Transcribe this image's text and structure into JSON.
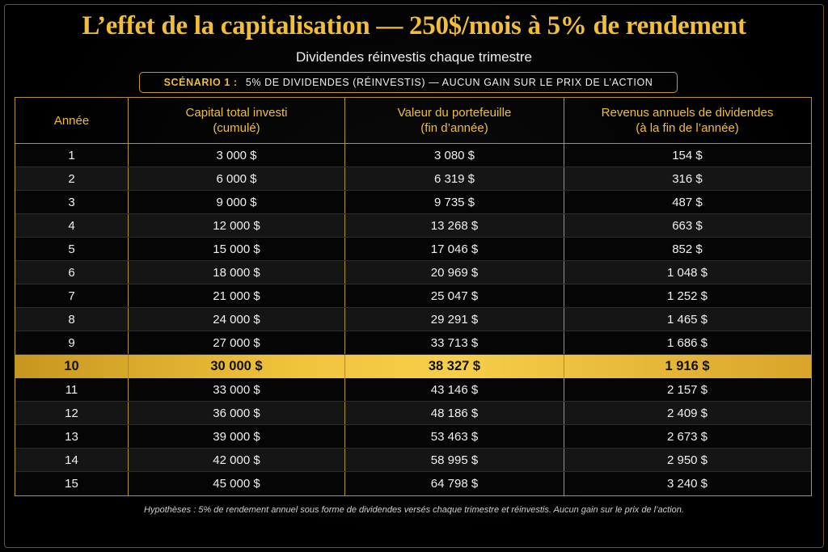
{
  "header": {
    "title": "L’effet de la capitalisation — 250$/mois à 5% de rendement",
    "subtitle": "Dividendes réinvestis chaque trimestre"
  },
  "scenario": {
    "label": "SCÉNARIO 1 :",
    "text": "5% DE DIVIDENDES (RÉINVESTIS) — AUCUN GAIN SUR LE PRIX DE L’ACTION"
  },
  "table": {
    "columns": [
      {
        "line1": "Année",
        "line2": ""
      },
      {
        "line1": "Capital total investi",
        "line2": "(cumulé)"
      },
      {
        "line1": "Valeur du portefeuille",
        "line2": "(fin d’année)"
      },
      {
        "line1": "Revenus annuels de dividendes",
        "line2": "(à la fin de l’année)"
      }
    ],
    "rows": [
      [
        "1",
        "3 000 $",
        "3 080 $",
        "154 $"
      ],
      [
        "2",
        "6 000 $",
        "6 319 $",
        "316 $"
      ],
      [
        "3",
        "9 000 $",
        "9 735 $",
        "487 $"
      ],
      [
        "4",
        "12 000 $",
        "13 268 $",
        "663 $"
      ],
      [
        "5",
        "15 000 $",
        "17 046 $",
        "852 $"
      ],
      [
        "6",
        "18 000 $",
        "20 969 $",
        "1 048 $"
      ],
      [
        "7",
        "21 000 $",
        "25 047 $",
        "1 252 $"
      ],
      [
        "8",
        "24 000 $",
        "29 291 $",
        "1 465 $"
      ],
      [
        "9",
        "27 000 $",
        "33 713 $",
        "1 686 $"
      ],
      [
        "10",
        "30 000 $",
        "38 327 $",
        "1 916 $"
      ],
      [
        "11",
        "33 000 $",
        "43 146 $",
        "2 157 $"
      ],
      [
        "12",
        "36 000 $",
        "48 186 $",
        "2 409 $"
      ],
      [
        "13",
        "39 000 $",
        "53 463 $",
        "2 673 $"
      ],
      [
        "14",
        "42 000 $",
        "58 995 $",
        "2 950 $"
      ],
      [
        "15",
        "45 000 $",
        "64 798 $",
        "3 240 $"
      ]
    ],
    "highlighted_row": "10"
  },
  "footnote": "Hypothèses : 5% de rendement annuel sous forme de dividendes versés chaque trimestre et réinvestis. Aucun gain sur le prix de l’action.",
  "colors": {
    "accent": "#f1be35",
    "background": "#000000",
    "highlight": "#f0c33c"
  },
  "chart_data": {
    "type": "table",
    "title": "L’effet de la capitalisation — 250$/mois à 5% de rendement",
    "subtitle": "Dividendes réinvestis chaque trimestre",
    "columns": [
      "Année",
      "Capital total investi (cumulé)",
      "Valeur du portefeuille (fin d’année)",
      "Revenus annuels de dividendes (à la fin de l’année)"
    ],
    "x": [
      1,
      2,
      3,
      4,
      5,
      6,
      7,
      8,
      9,
      10,
      11,
      12,
      13,
      14,
      15
    ],
    "series": [
      {
        "name": "Capital total investi (cumulé)",
        "values": [
          3000,
          6000,
          9000,
          12000,
          15000,
          18000,
          21000,
          24000,
          27000,
          30000,
          33000,
          36000,
          39000,
          42000,
          45000
        ]
      },
      {
        "name": "Valeur du portefeuille (fin d’année)",
        "values": [
          3080,
          6319,
          9735,
          13268,
          17046,
          20969,
          25047,
          29291,
          33713,
          38327,
          43146,
          48186,
          53463,
          58995,
          64798
        ]
      },
      {
        "name": "Revenus annuels de dividendes (à la fin de l’année)",
        "values": [
          154,
          316,
          487,
          663,
          852,
          1048,
          1252,
          1465,
          1686,
          1916,
          2157,
          2409,
          2673,
          2950,
          3240
        ]
      }
    ]
  }
}
